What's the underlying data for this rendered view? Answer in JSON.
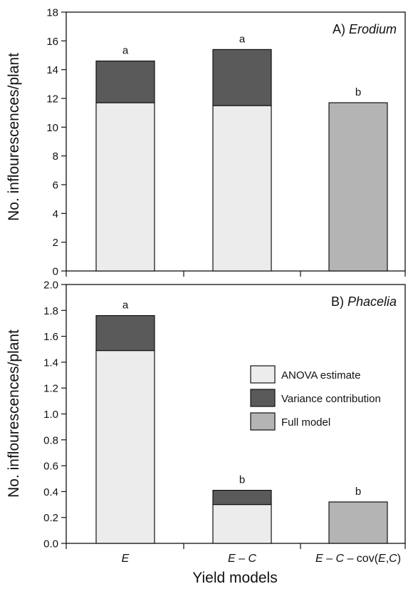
{
  "figure": {
    "xlabel": "Yield models",
    "ylabel": "No. inflourescences/plant"
  },
  "colors": {
    "anova": "#ececec",
    "variance": "#5a5a5a",
    "full": "#b4b4b4",
    "stroke": "#111111"
  },
  "legend": {
    "placement": "right",
    "items": [
      {
        "label": "ANOVA estimate",
        "key": "anova"
      },
      {
        "label": "Variance contribution",
        "key": "variance"
      },
      {
        "label": "Full model",
        "key": "full"
      }
    ]
  },
  "x_categories": [
    {
      "parts": [
        {
          "t": "E",
          "i": true
        }
      ]
    },
    {
      "parts": [
        {
          "t": "E",
          "i": true
        },
        {
          "t": " – ",
          "i": false
        },
        {
          "t": "C",
          "i": true
        }
      ]
    },
    {
      "parts": [
        {
          "t": "E",
          "i": true
        },
        {
          "t": " – ",
          "i": false
        },
        {
          "t": "C",
          "i": true
        },
        {
          "t": " – cov(",
          "i": false
        },
        {
          "t": "E",
          "i": true
        },
        {
          "t": ",",
          "i": false
        },
        {
          "t": "C",
          "i": true
        },
        {
          "t": ")",
          "i": false
        }
      ]
    }
  ],
  "chart_data": [
    {
      "type": "bar",
      "stacked": true,
      "panel_letter": "A)",
      "panel_taxon": "Erodium",
      "categories": [
        "E",
        "E – C",
        "E – C – cov(E,C)"
      ],
      "ylim": [
        0,
        18
      ],
      "yticks": [
        "0",
        "2",
        "4",
        "6",
        "8",
        "10",
        "12",
        "14",
        "16",
        "18"
      ],
      "ytick_values": [
        0,
        2,
        4,
        6,
        8,
        10,
        12,
        14,
        16,
        18
      ],
      "series": [
        {
          "key": "anova",
          "values": [
            11.7,
            11.5,
            null
          ]
        },
        {
          "key": "variance",
          "values": [
            2.9,
            3.9,
            null
          ]
        },
        {
          "key": "full",
          "values": [
            null,
            null,
            11.7
          ]
        }
      ],
      "letters": [
        "a",
        "a",
        "b"
      ]
    },
    {
      "type": "bar",
      "stacked": true,
      "panel_letter": "B)",
      "panel_taxon": "Phacelia",
      "categories": [
        "E",
        "E – C",
        "E – C – cov(E,C)"
      ],
      "ylim": [
        0,
        2.0
      ],
      "yticks": [
        "0.0",
        "0.2",
        "0.4",
        "0.6",
        "0.8",
        "1.0",
        "1.2",
        "1.4",
        "1.6",
        "1.8",
        "2.0"
      ],
      "ytick_values": [
        0,
        0.2,
        0.4,
        0.6,
        0.8,
        1.0,
        1.2,
        1.4,
        1.6,
        1.8,
        2.0
      ],
      "series": [
        {
          "key": "anova",
          "values": [
            1.49,
            0.3,
            null
          ]
        },
        {
          "key": "variance",
          "values": [
            0.27,
            0.11,
            null
          ]
        },
        {
          "key": "full",
          "values": [
            null,
            null,
            0.32
          ]
        }
      ],
      "letters": [
        "a",
        "b",
        "b"
      ]
    }
  ]
}
